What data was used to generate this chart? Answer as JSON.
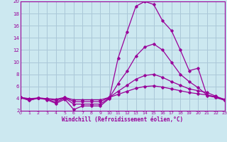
{
  "xlabel": "Windchill (Refroidissement éolien,°C)",
  "background_color": "#cce8f0",
  "grid_color": "#aac8d8",
  "line_color": "#990099",
  "x_ticks": [
    0,
    1,
    2,
    3,
    4,
    5,
    6,
    7,
    8,
    9,
    10,
    11,
    12,
    13,
    14,
    15,
    16,
    17,
    18,
    19,
    20,
    21,
    22,
    23
  ],
  "y_ticks": [
    2,
    4,
    6,
    8,
    10,
    12,
    14,
    16,
    18,
    20
  ],
  "xlim": [
    0,
    23
  ],
  "ylim": [
    2,
    20
  ],
  "curves": [
    [
      4.2,
      3.7,
      4.1,
      3.8,
      3.2,
      3.9,
      2.2,
      2.8,
      2.8,
      2.8,
      4.0,
      10.7,
      15.0,
      19.2,
      20.0,
      19.5,
      16.8,
      15.2,
      12.0,
      8.6,
      9.0,
      4.5,
      4.2,
      3.7
    ],
    [
      4.2,
      3.7,
      4.1,
      3.9,
      3.4,
      4.1,
      3.1,
      3.1,
      3.1,
      3.1,
      4.1,
      6.5,
      8.5,
      11.0,
      12.5,
      13.0,
      12.0,
      10.0,
      8.0,
      6.8,
      5.8,
      4.6,
      4.2,
      3.8
    ],
    [
      4.2,
      3.9,
      4.1,
      4.0,
      3.7,
      4.2,
      3.5,
      3.5,
      3.5,
      3.5,
      4.2,
      5.2,
      6.2,
      7.2,
      7.8,
      8.0,
      7.5,
      6.8,
      6.2,
      5.6,
      5.3,
      5.0,
      4.4,
      3.8
    ],
    [
      4.2,
      4.0,
      4.1,
      4.0,
      3.9,
      4.2,
      3.8,
      3.8,
      3.8,
      3.8,
      4.2,
      4.7,
      5.2,
      5.7,
      6.0,
      6.1,
      5.9,
      5.6,
      5.3,
      5.0,
      4.8,
      4.6,
      4.3,
      3.9
    ]
  ]
}
